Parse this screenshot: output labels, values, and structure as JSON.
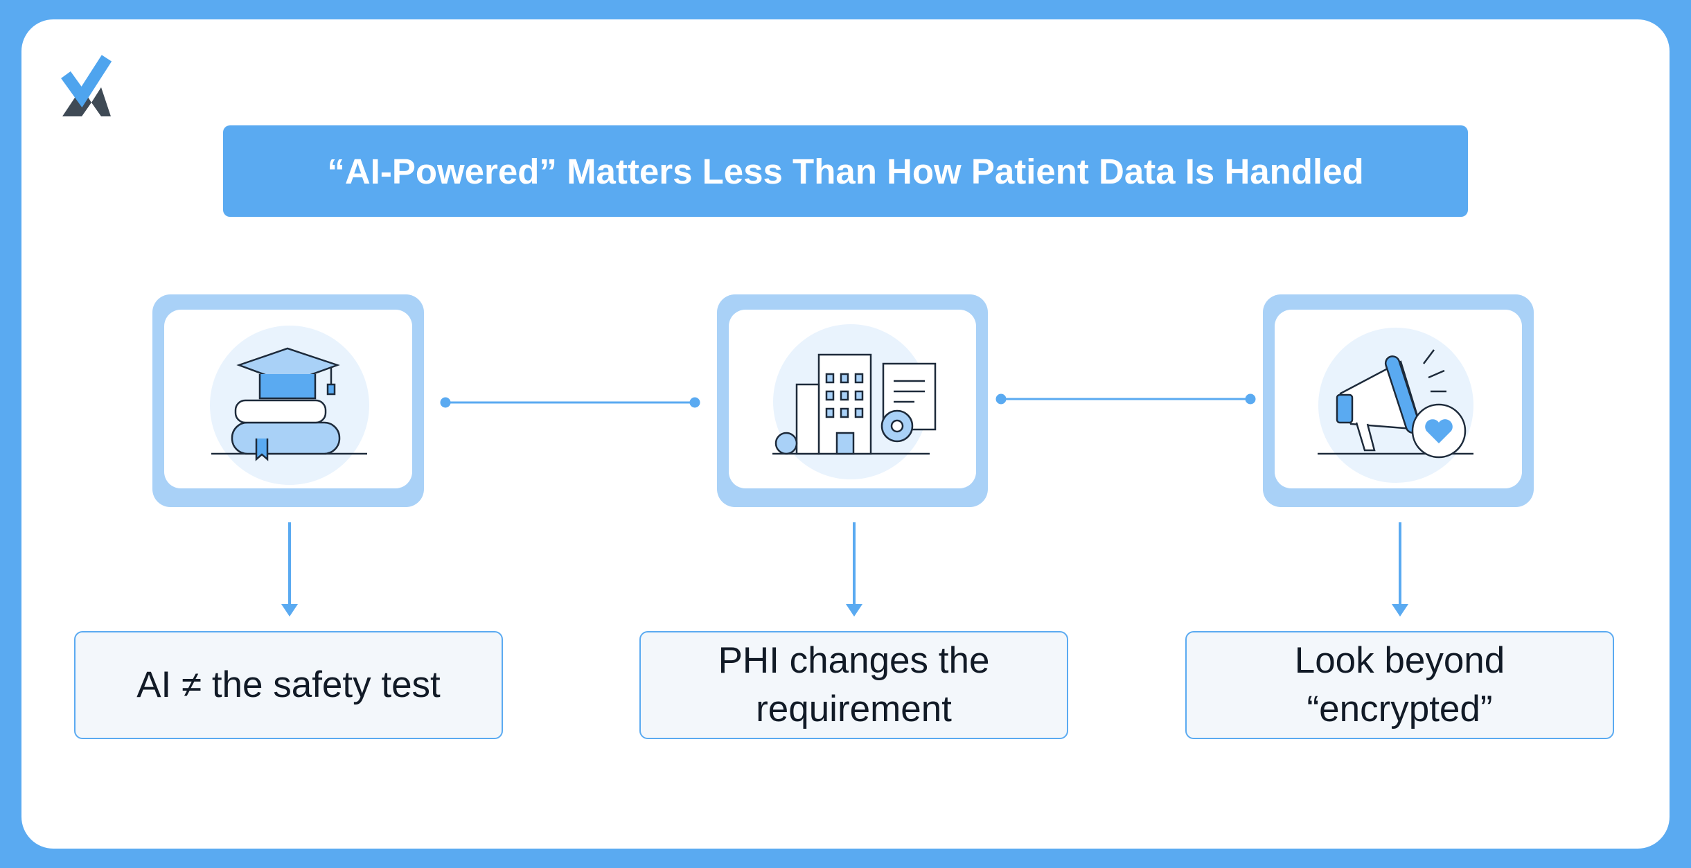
{
  "header": {
    "title": "“AI-Powered” Matters Less Than How Patient Data Is Handled"
  },
  "steps": [
    {
      "label": "AI ≠ the safety test"
    },
    {
      "label": "PHI changes the requirement"
    },
    {
      "label": "Look beyond “encrypted”"
    }
  ]
}
